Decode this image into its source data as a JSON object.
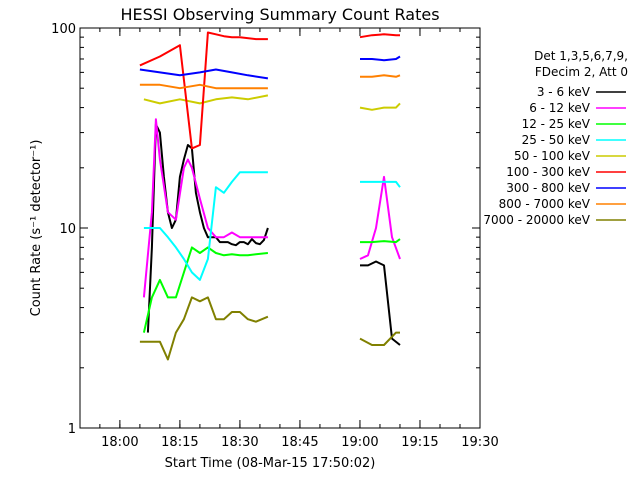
{
  "chart_data": {
    "type": "line",
    "title": "HESSI Observing Summary Count Rates",
    "xlabel": "Start Time (08-Mar-15 17:50:02)",
    "ylabel": "Count Rate (s⁻¹ detector⁻¹)",
    "x_ticks": [
      "18:00",
      "18:15",
      "18:30",
      "18:45",
      "19:00",
      "19:15",
      "19:30"
    ],
    "x_range": [
      "17:50:02",
      "19:30"
    ],
    "y_ticks": [
      "1",
      "10",
      "100"
    ],
    "ylim": [
      1,
      100
    ],
    "y_scale": "log",
    "legend_header": [
      "Det 1,3,5,6,7,9,",
      "FDecim 2, Att 0"
    ],
    "legend_placement": "right",
    "series": [
      {
        "name": "3 - 6 keV",
        "color": "#000000",
        "segments": [
          {
            "x": [
              "18:07",
              "18:08",
              "18:09",
              "18:10",
              "18:11",
              "18:12",
              "18:13",
              "18:14",
              "18:15",
              "18:16",
              "18:17",
              "18:18",
              "18:19",
              "18:20",
              "18:21",
              "18:22",
              "18:23",
              "18:24",
              "18:25",
              "18:26",
              "18:27",
              "18:28",
              "18:29",
              "18:30",
              "18:31",
              "18:32",
              "18:33",
              "18:34",
              "18:35",
              "18:36",
              "18:37"
            ],
            "y": [
              3.0,
              8.0,
              33,
              30,
              18,
              12,
              10,
              11,
              18,
              22,
              26,
              25,
              15,
              12,
              10,
              9,
              9,
              9,
              8.5,
              8.5,
              8.5,
              8.3,
              8.2,
              8.5,
              8.5,
              8.3,
              8.8,
              8.4,
              8.3,
              8.7,
              10
            ]
          },
          {
            "x": [
              "19:00",
              "19:02",
              "19:04",
              "19:06",
              "19:08",
              "19:10"
            ],
            "y": [
              6.5,
              6.5,
              6.8,
              6.5,
              2.8,
              2.6
            ]
          }
        ]
      },
      {
        "name": "6 - 12 keV",
        "color": "#ff00ff",
        "segments": [
          {
            "x": [
              "18:06",
              "18:08",
              "18:09",
              "18:10",
              "18:12",
              "18:14",
              "18:16",
              "18:17",
              "18:18",
              "18:20",
              "18:22",
              "18:24",
              "18:26",
              "18:28",
              "18:30",
              "18:32",
              "18:34",
              "18:37"
            ],
            "y": [
              4.5,
              12,
              35,
              22,
              12,
              11,
              20,
              22,
              20,
              14,
              10,
              9,
              9,
              9.5,
              9,
              9,
              9,
              9
            ]
          },
          {
            "x": [
              "19:00",
              "19:02",
              "19:04",
              "19:06",
              "19:08",
              "19:10"
            ],
            "y": [
              7,
              7.3,
              10,
              18,
              9,
              7
            ]
          }
        ]
      },
      {
        "name": "12 - 25 keV",
        "color": "#00ff00",
        "segments": [
          {
            "x": [
              "18:06",
              "18:08",
              "18:10",
              "18:12",
              "18:14",
              "18:16",
              "18:18",
              "18:20",
              "18:22",
              "18:24",
              "18:26",
              "18:28",
              "18:30",
              "18:32",
              "18:34",
              "18:37"
            ],
            "y": [
              3,
              4.5,
              5.5,
              4.5,
              4.5,
              6,
              8,
              7.5,
              8,
              7.5,
              7.3,
              7.4,
              7.3,
              7.3,
              7.4,
              7.5
            ]
          },
          {
            "x": [
              "19:00",
              "19:03",
              "19:06",
              "19:09",
              "19:10"
            ],
            "y": [
              8.5,
              8.5,
              8.6,
              8.5,
              8.8
            ]
          }
        ]
      },
      {
        "name": "25 - 50 keV",
        "color": "#00ffff",
        "segments": [
          {
            "x": [
              "18:06",
              "18:08",
              "18:10",
              "18:12",
              "18:14",
              "18:16",
              "18:18",
              "18:20",
              "18:22",
              "18:24",
              "18:26",
              "18:28",
              "18:30",
              "18:32",
              "18:34",
              "18:37"
            ],
            "y": [
              10,
              10,
              10,
              9,
              8,
              7,
              6,
              5.5,
              7,
              16,
              15,
              17,
              19,
              19,
              19,
              19
            ]
          },
          {
            "x": [
              "19:00",
              "19:03",
              "19:06",
              "19:09",
              "19:10"
            ],
            "y": [
              17,
              17,
              17,
              17,
              16
            ]
          }
        ]
      },
      {
        "name": "50 - 100 keV",
        "color": "#cccc00",
        "segments": [
          {
            "x": [
              "18:06",
              "18:10",
              "18:15",
              "18:20",
              "18:24",
              "18:28",
              "18:32",
              "18:37"
            ],
            "y": [
              44,
              42,
              44,
              42,
              44,
              45,
              44,
              46
            ]
          },
          {
            "x": [
              "19:00",
              "19:03",
              "19:06",
              "19:09",
              "19:10"
            ],
            "y": [
              40,
              39,
              40,
              40,
              42
            ]
          }
        ]
      },
      {
        "name": "100 - 300 keV",
        "color": "#ff0000",
        "segments": [
          {
            "x": [
              "18:05",
              "18:10",
              "18:15",
              "18:18",
              "18:20",
              "18:22",
              "18:24",
              "18:26",
              "18:28",
              "18:30",
              "18:34",
              "18:37"
            ],
            "y": [
              65,
              72,
              82,
              25,
              26,
              95,
              93,
              91,
              90,
              90,
              88,
              88
            ]
          },
          {
            "x": [
              "19:00",
              "19:03",
              "19:06",
              "19:09",
              "19:10"
            ],
            "y": [
              90,
              92,
              93,
              92,
              92
            ]
          }
        ]
      },
      {
        "name": "300 - 800 keV",
        "color": "#0000ff",
        "segments": [
          {
            "x": [
              "18:05",
              "18:10",
              "18:15",
              "18:20",
              "18:24",
              "18:28",
              "18:32",
              "18:37"
            ],
            "y": [
              62,
              60,
              58,
              60,
              62,
              60,
              58,
              56
            ]
          },
          {
            "x": [
              "19:00",
              "19:03",
              "19:06",
              "19:09",
              "19:10"
            ],
            "y": [
              70,
              70,
              69,
              70,
              72
            ]
          }
        ]
      },
      {
        "name": "800 - 7000 keV",
        "color": "#ff8000",
        "segments": [
          {
            "x": [
              "18:05",
              "18:10",
              "18:15",
              "18:20",
              "18:24",
              "18:28",
              "18:32",
              "18:37"
            ],
            "y": [
              52,
              52,
              50,
              52,
              50,
              50,
              50,
              50
            ]
          },
          {
            "x": [
              "19:00",
              "19:03",
              "19:06",
              "19:09",
              "19:10"
            ],
            "y": [
              57,
              57,
              58,
              57,
              58
            ]
          }
        ]
      },
      {
        "name": "7000 - 20000 keV",
        "color": "#808000",
        "segments": [
          {
            "x": [
              "18:05",
              "18:08",
              "18:10",
              "18:12",
              "18:14",
              "18:16",
              "18:18",
              "18:20",
              "18:22",
              "18:24",
              "18:26",
              "18:28",
              "18:30",
              "18:32",
              "18:34",
              "18:37"
            ],
            "y": [
              2.7,
              2.7,
              2.7,
              2.2,
              3.0,
              3.5,
              4.5,
              4.3,
              4.5,
              3.5,
              3.5,
              3.8,
              3.8,
              3.5,
              3.4,
              3.6
            ]
          },
          {
            "x": [
              "19:00",
              "19:03",
              "19:06",
              "19:09",
              "19:10"
            ],
            "y": [
              2.8,
              2.6,
              2.6,
              3.0,
              3.0
            ]
          }
        ]
      }
    ]
  }
}
